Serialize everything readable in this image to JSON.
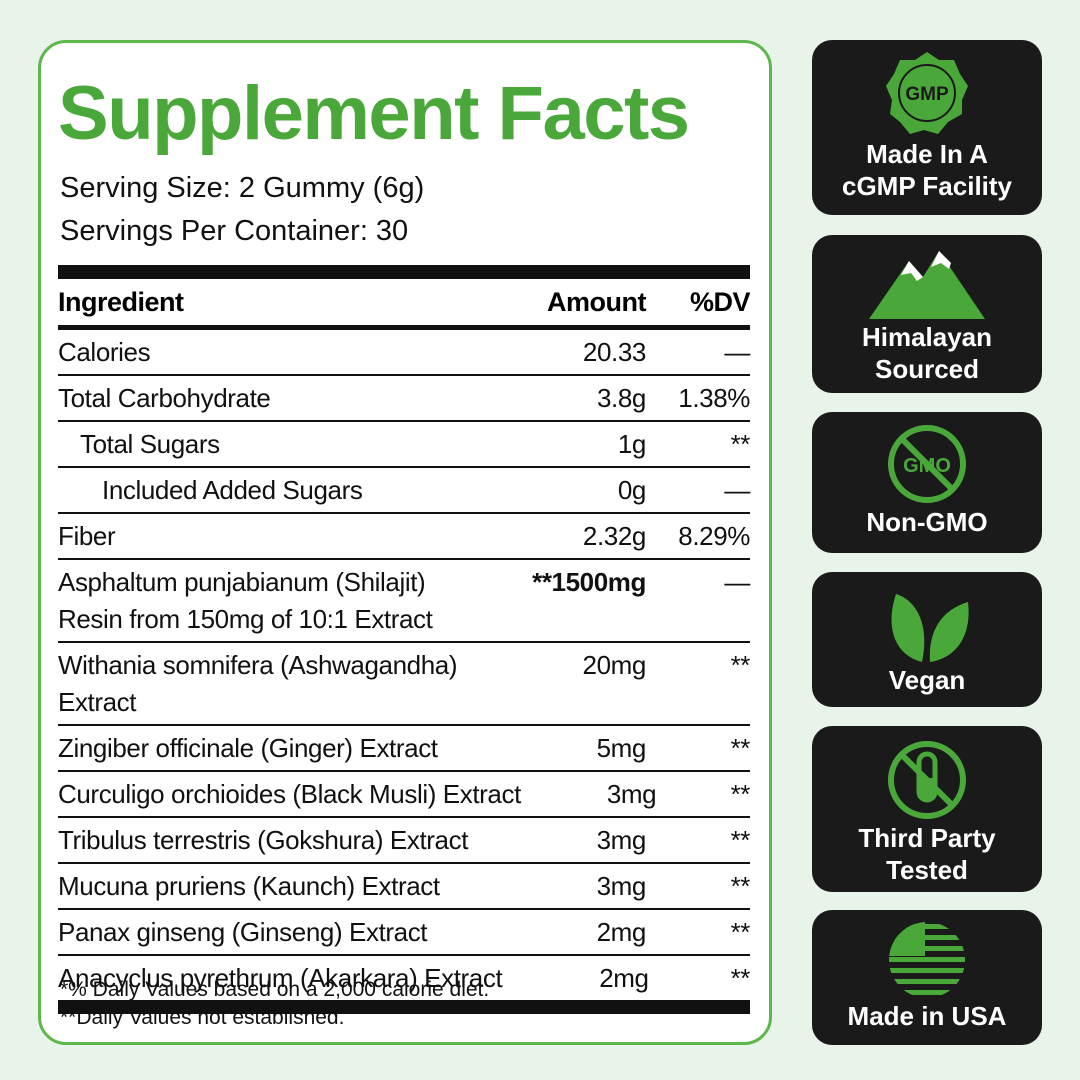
{
  "panel": {
    "title": "Supplement Facts",
    "serving_size": "Serving Size: 2 Gummy (6g)",
    "servings_per_container": "Servings Per Container: 30",
    "table": {
      "header": [
        "Ingredient",
        "Amount",
        "%DV"
      ],
      "rows": [
        {
          "name": [
            "Calories"
          ],
          "amount": "20.33",
          "dv": "—",
          "indent": 0
        },
        {
          "name": [
            "Total Carbohydrate"
          ],
          "amount": "3.8g",
          "dv": "1.38%",
          "indent": 0
        },
        {
          "name": [
            "Total Sugars"
          ],
          "amount": "1g",
          "dv": "**",
          "indent": 1
        },
        {
          "name": [
            "Included Added Sugars"
          ],
          "amount": "0g",
          "dv": "—",
          "indent": 2
        },
        {
          "name": [
            "Fiber"
          ],
          "amount": "2.32g",
          "dv": "8.29%",
          "indent": 0
        },
        {
          "name": [
            "Asphaltum punjabianum (Shilajit)",
            "Resin from 150mg of 10:1 Extract"
          ],
          "amount": "**1500mg",
          "dv": "—",
          "indent": 0,
          "emphasis": true
        },
        {
          "name": [
            "Withania somnifera (Ashwagandha)",
            "Extract"
          ],
          "amount": "20mg",
          "dv": "**",
          "indent": 0
        },
        {
          "name": [
            "Zingiber officinale (Ginger) Extract"
          ],
          "amount": "5mg",
          "dv": "**",
          "indent": 0
        },
        {
          "name": [
            "Curculigo orchioides (Black Musli) Extract"
          ],
          "amount": "3mg",
          "dv": "**",
          "indent": 0
        },
        {
          "name": [
            "Tribulus terrestris (Gokshura) Extract"
          ],
          "amount": "3mg",
          "dv": "**",
          "indent": 0
        },
        {
          "name": [
            "Mucuna pruriens (Kaunch) Extract"
          ],
          "amount": "3mg",
          "dv": "**",
          "indent": 0
        },
        {
          "name": [
            "Panax ginseng (Ginseng) Extract"
          ],
          "amount": "2mg",
          "dv": "**",
          "indent": 0
        },
        {
          "name": [
            "Anacyclus pyrethrum (Akarkara) Extract"
          ],
          "amount": "2mg",
          "dv": "**",
          "indent": 0
        }
      ]
    },
    "footnotes": [
      "*% Daily Values based on a 2,000 calorie diet.",
      "**Daily Values not established."
    ]
  },
  "badges": [
    {
      "icon_text": "GMP",
      "lines": [
        "Made In A",
        "cGMP Facility"
      ]
    },
    {
      "lines": [
        "Himalayan",
        "Sourced"
      ]
    },
    {
      "icon_text": "GMO",
      "lines": [
        "Non-GMO"
      ]
    },
    {
      "lines": [
        "Vegan"
      ]
    },
    {
      "lines": [
        "Third Party",
        "Tested"
      ]
    },
    {
      "lines": [
        "Made in USA"
      ]
    }
  ]
}
